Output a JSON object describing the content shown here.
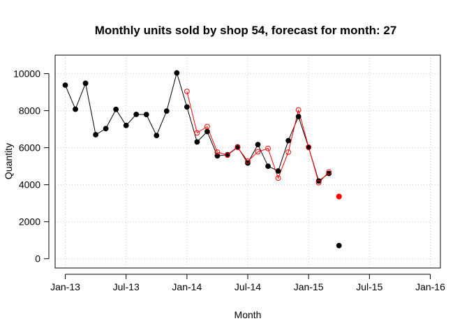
{
  "chart_data": {
    "type": "line",
    "title": "Monthly units sold by shop 54, forecast for month: 27",
    "xlabel": "Month",
    "ylabel": "Quantity",
    "x_ticks": [
      "Jan-13",
      "Jul-13",
      "Jan-14",
      "Jul-14",
      "Jan-15",
      "Jul-15",
      "Jan-16"
    ],
    "y_ticks": [
      0,
      2000,
      4000,
      6000,
      8000,
      10000
    ],
    "xlim": [
      "2012-12",
      "2016-02"
    ],
    "ylim": [
      -500,
      11000
    ],
    "grid": true,
    "grid_style": "dotted",
    "colors": {
      "actual": "#000000",
      "fitted": "#ff0000",
      "grid": "#cccccc"
    },
    "series": [
      {
        "role": "actual",
        "style": "line-with-filled-points",
        "color": "#000000",
        "x": [
          "2013-01",
          "2013-02",
          "2013-03",
          "2013-04",
          "2013-05",
          "2013-06",
          "2013-07",
          "2013-08",
          "2013-09",
          "2013-10",
          "2013-11",
          "2013-12",
          "2014-01",
          "2014-02",
          "2014-03",
          "2014-04",
          "2014-05",
          "2014-06",
          "2014-07",
          "2014-08",
          "2014-09",
          "2014-10",
          "2014-11",
          "2014-12",
          "2015-01",
          "2015-02",
          "2015-03",
          "2015-04"
        ],
        "values": [
          9380,
          8080,
          9480,
          6700,
          7030,
          8070,
          7200,
          7800,
          7790,
          6660,
          7980,
          10040,
          8200,
          6310,
          6870,
          5560,
          5620,
          6040,
          5170,
          6170,
          5000,
          4740,
          6380,
          7680,
          6020,
          4200,
          4610,
          710
        ]
      },
      {
        "role": "fitted",
        "style": "line-with-open-points",
        "color": "#ff0000",
        "x": [
          "2014-01",
          "2014-02",
          "2014-03",
          "2014-04",
          "2014-05",
          "2014-06",
          "2014-07",
          "2014-08",
          "2014-09",
          "2014-10",
          "2014-11",
          "2014-12",
          "2015-01",
          "2015-02",
          "2015-03"
        ],
        "values": [
          9040,
          6800,
          7140,
          5760,
          5600,
          6020,
          5270,
          5780,
          5960,
          4360,
          5760,
          8040,
          6030,
          4110,
          4690
        ]
      },
      {
        "role": "forecast",
        "style": "filled-point",
        "color": "#ff0000",
        "x": [
          "2015-04"
        ],
        "values": [
          3360
        ]
      }
    ]
  }
}
